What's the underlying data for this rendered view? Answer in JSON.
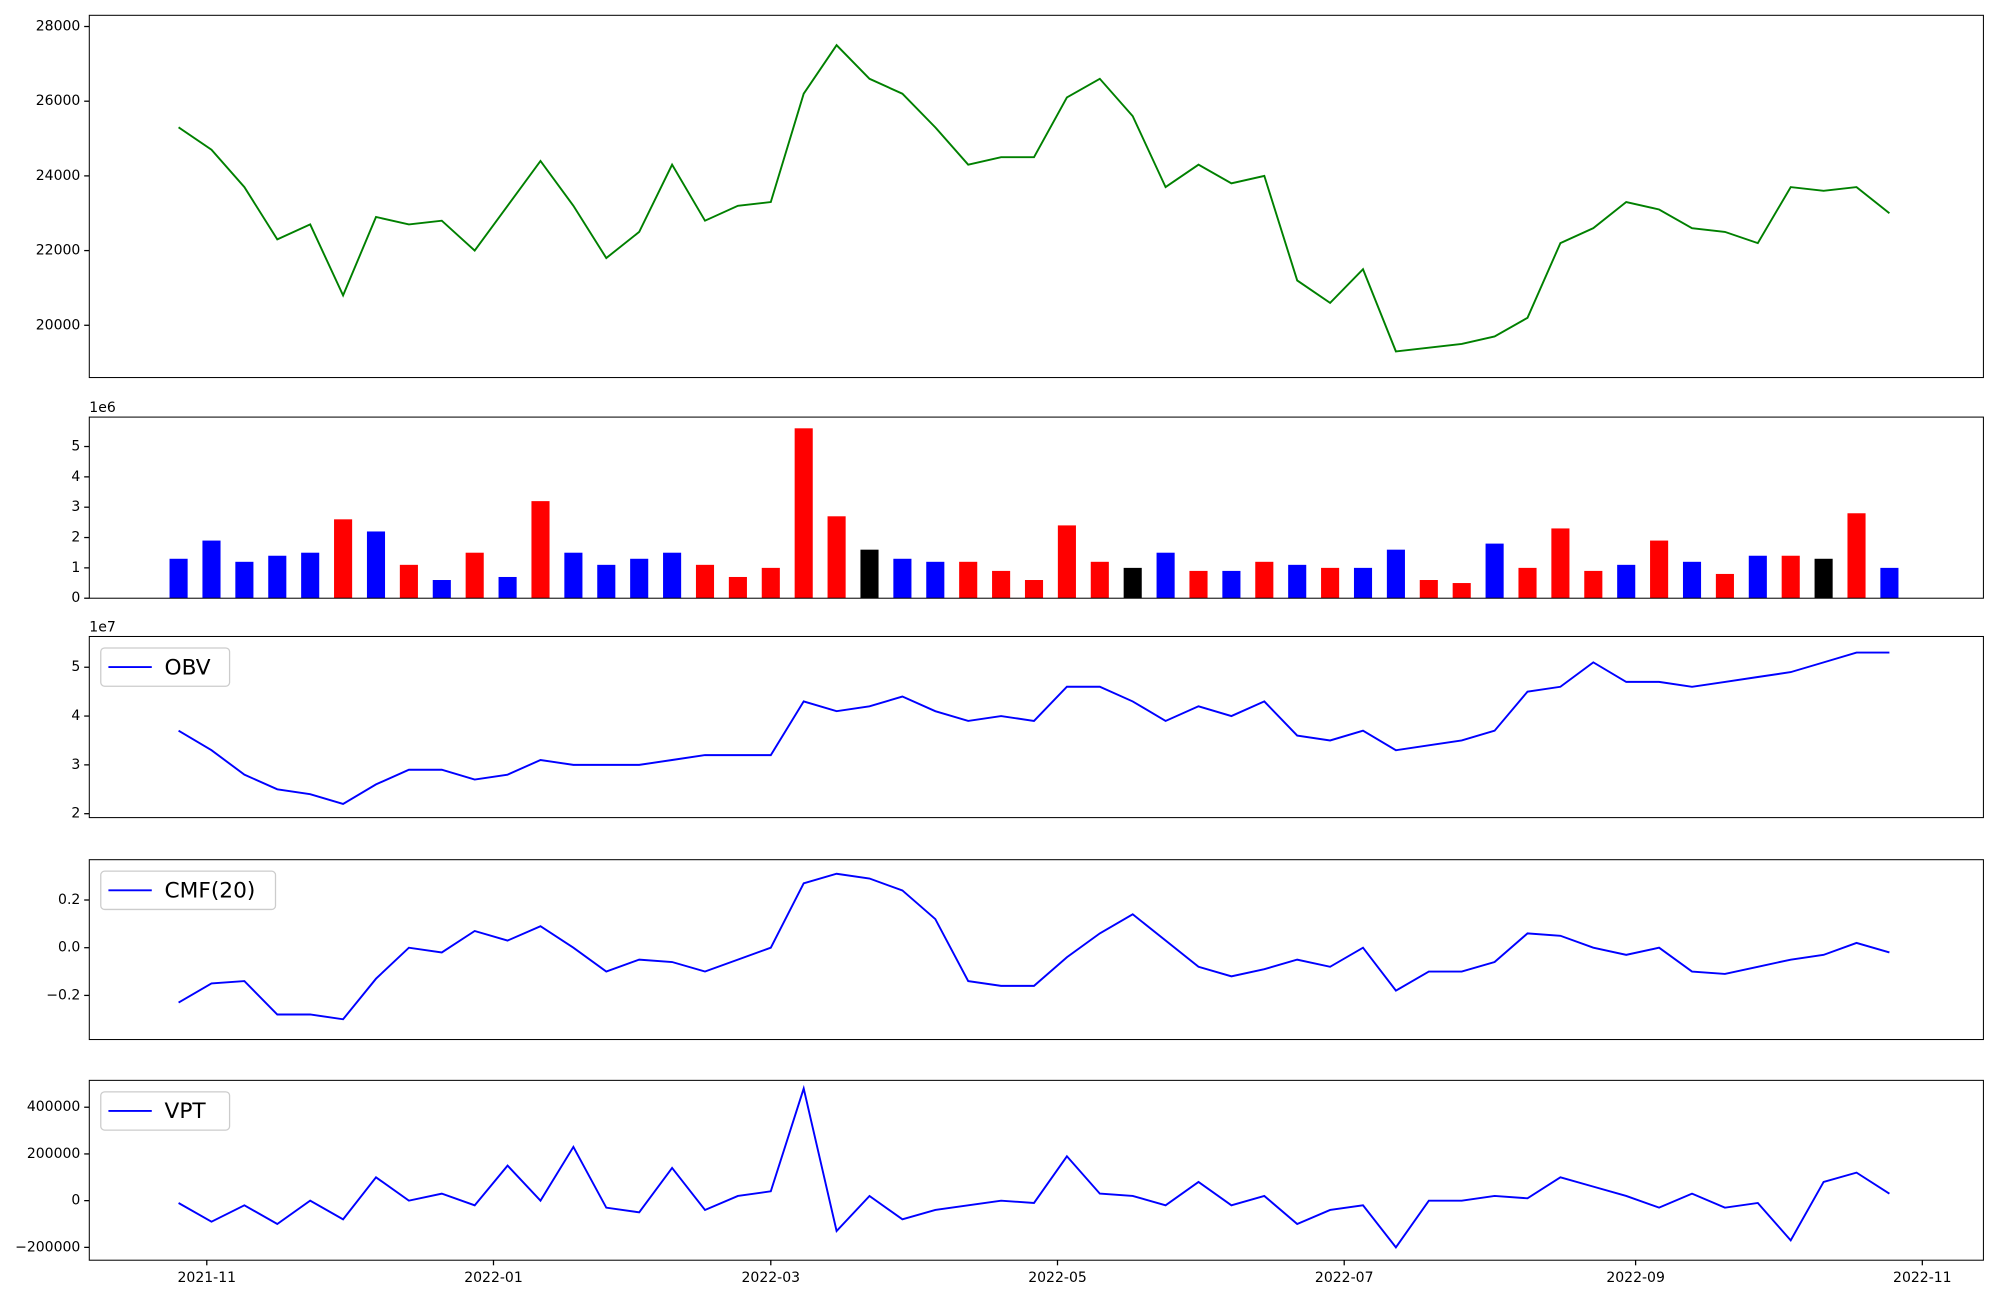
{
  "chart_data": [
    {
      "type": "line",
      "color": "#008000",
      "x": [
        -6,
        1,
        8,
        15,
        22,
        29,
        36,
        43,
        50,
        57,
        64,
        71,
        78,
        85,
        92,
        99,
        106,
        113,
        120,
        127,
        134,
        141,
        148,
        155,
        162,
        169,
        176,
        183,
        190,
        197,
        204,
        211,
        218,
        225,
        232,
        239,
        246,
        253,
        260,
        267,
        274,
        281,
        288,
        295,
        302,
        309,
        316,
        323,
        330,
        337,
        344,
        351,
        358
      ],
      "values": [
        25300,
        24700,
        23700,
        22300,
        22700,
        20800,
        22900,
        22700,
        22800,
        22000,
        23200,
        24400,
        23200,
        21800,
        22500,
        24300,
        22800,
        23200,
        23300,
        26200,
        27500,
        26600,
        26200,
        25300,
        24300,
        24500,
        24500,
        26100,
        26600,
        25600,
        23700,
        24300,
        23800,
        24000,
        21200,
        20600,
        21500,
        19300,
        19400,
        19500,
        19700,
        20200,
        22200,
        22600,
        23300,
        23100,
        22600,
        22500,
        22200,
        23700,
        23600,
        23700,
        23000
      ],
      "xlim": [
        -25,
        378
      ],
      "ylim": [
        18600,
        28300
      ],
      "yticks": [
        20000,
        22000,
        24000,
        26000,
        28000
      ]
    },
    {
      "type": "bar",
      "offset_text": "1e6",
      "x": [
        -6,
        1,
        8,
        15,
        22,
        29,
        36,
        43,
        50,
        57,
        64,
        71,
        78,
        85,
        92,
        99,
        106,
        113,
        120,
        127,
        134,
        141,
        148,
        155,
        162,
        169,
        176,
        183,
        190,
        197,
        204,
        211,
        218,
        225,
        232,
        239,
        246,
        253,
        260,
        267,
        274,
        281,
        288,
        295,
        302,
        309,
        316,
        323,
        330,
        337,
        344,
        351,
        358
      ],
      "values": [
        1.3,
        1.9,
        1.2,
        1.4,
        1.5,
        2.6,
        2.2,
        1.1,
        0.6,
        1.5,
        0.7,
        3.2,
        1.5,
        1.1,
        1.3,
        1.5,
        1.1,
        0.7,
        1.0,
        5.6,
        2.7,
        1.6,
        1.3,
        1.2,
        1.2,
        0.9,
        0.6,
        2.4,
        1.2,
        1.0,
        1.5,
        0.9,
        0.9,
        1.2,
        1.1,
        1.0,
        1.0,
        1.6,
        0.6,
        0.5,
        1.8,
        1.0,
        2.3,
        0.9,
        1.1,
        1.9,
        1.2,
        0.8,
        1.4,
        1.4,
        1.3,
        2.8,
        1.0
      ],
      "colors": [
        "#0000ff",
        "#0000ff",
        "#0000ff",
        "#0000ff",
        "#0000ff",
        "#ff0000",
        "#0000ff",
        "#ff0000",
        "#0000ff",
        "#ff0000",
        "#0000ff",
        "#ff0000",
        "#0000ff",
        "#0000ff",
        "#0000ff",
        "#0000ff",
        "#ff0000",
        "#ff0000",
        "#ff0000",
        "#ff0000",
        "#ff0000",
        "#000000",
        "#0000ff",
        "#0000ff",
        "#ff0000",
        "#ff0000",
        "#ff0000",
        "#ff0000",
        "#ff0000",
        "#000000",
        "#0000ff",
        "#ff0000",
        "#0000ff",
        "#ff0000",
        "#0000ff",
        "#ff0000",
        "#0000ff",
        "#0000ff",
        "#ff0000",
        "#ff0000",
        "#0000ff",
        "#ff0000",
        "#ff0000",
        "#ff0000",
        "#0000ff",
        "#ff0000",
        "#0000ff",
        "#ff0000",
        "#0000ff",
        "#ff0000",
        "#000000",
        "#ff0000",
        "#0000ff"
      ],
      "xlim": [
        -25,
        378
      ],
      "ylim": [
        0,
        5.97
      ],
      "yticks": [
        0,
        1,
        2,
        3,
        4,
        5
      ]
    },
    {
      "type": "line",
      "offset_text": "1e7",
      "legend": "upper left",
      "x": [
        -6,
        1,
        8,
        15,
        22,
        29,
        36,
        43,
        50,
        57,
        64,
        71,
        78,
        85,
        92,
        99,
        106,
        113,
        120,
        127,
        134,
        141,
        148,
        155,
        162,
        169,
        176,
        183,
        190,
        197,
        204,
        211,
        218,
        225,
        232,
        239,
        246,
        253,
        260,
        267,
        274,
        281,
        288,
        295,
        302,
        309,
        316,
        323,
        330,
        337,
        344,
        351,
        358
      ],
      "series": [
        {
          "name": "OBV",
          "color": "#0000ff",
          "values": [
            3.7,
            3.3,
            2.8,
            2.5,
            2.4,
            2.2,
            2.6,
            2.9,
            2.9,
            2.7,
            2.8,
            3.1,
            3.0,
            3.0,
            3.0,
            3.1,
            3.2,
            3.2,
            3.2,
            4.3,
            4.1,
            4.2,
            4.4,
            4.1,
            3.9,
            4.0,
            3.9,
            4.6,
            4.6,
            4.3,
            3.9,
            4.2,
            4.0,
            4.3,
            3.6,
            3.5,
            3.7,
            3.3,
            3.4,
            3.5,
            3.7,
            4.5,
            4.6,
            5.1,
            4.7,
            4.7,
            4.6,
            4.7,
            4.8,
            4.9,
            5.1,
            5.3,
            5.3
          ]
        }
      ],
      "xlim": [
        -25,
        378
      ],
      "ylim": [
        1.92,
        5.63
      ],
      "yticks": [
        2,
        3,
        4,
        5
      ]
    },
    {
      "type": "line",
      "legend": "upper left",
      "x": [
        -6,
        1,
        8,
        15,
        22,
        29,
        36,
        43,
        50,
        57,
        64,
        71,
        78,
        85,
        92,
        99,
        106,
        113,
        120,
        127,
        134,
        141,
        148,
        155,
        162,
        169,
        176,
        183,
        190,
        197,
        204,
        211,
        218,
        225,
        232,
        239,
        246,
        253,
        260,
        267,
        274,
        281,
        288,
        295,
        302,
        309,
        316,
        323,
        330,
        337,
        344,
        351,
        358
      ],
      "series": [
        {
          "name": "CMF(20)",
          "color": "#0000ff",
          "values": [
            -0.23,
            -0.15,
            -0.14,
            -0.28,
            -0.28,
            -0.3,
            -0.13,
            0.0,
            -0.02,
            0.07,
            0.03,
            0.09,
            0.0,
            -0.1,
            -0.05,
            -0.06,
            -0.1,
            -0.05,
            0.0,
            0.27,
            0.31,
            0.29,
            0.24,
            0.12,
            -0.14,
            -0.16,
            -0.16,
            -0.04,
            0.06,
            0.14,
            0.03,
            -0.08,
            -0.12,
            -0.09,
            -0.05,
            -0.08,
            0.0,
            -0.18,
            -0.1,
            -0.1,
            -0.06,
            0.06,
            0.05,
            0.0,
            -0.03,
            0.0,
            -0.1,
            -0.11,
            -0.08,
            -0.05,
            -0.03,
            0.02,
            -0.02
          ]
        }
      ],
      "xlim": [
        -25,
        378
      ],
      "ylim": [
        -0.385,
        0.369
      ],
      "yticks": [
        {
          "value": -0.2,
          "label": "−0.2"
        },
        {
          "value": 0,
          "label": "0.0"
        },
        0.2
      ]
    },
    {
      "type": "line",
      "legend": "upper left",
      "x": [
        -6,
        1,
        8,
        15,
        22,
        29,
        36,
        43,
        50,
        57,
        64,
        71,
        78,
        85,
        92,
        99,
        106,
        113,
        120,
        127,
        134,
        141,
        148,
        155,
        162,
        169,
        176,
        183,
        190,
        197,
        204,
        211,
        218,
        225,
        232,
        239,
        246,
        253,
        260,
        267,
        274,
        281,
        288,
        295,
        302,
        309,
        316,
        323,
        330,
        337,
        344,
        351,
        358
      ],
      "series": [
        {
          "name": "VPT",
          "color": "#0000ff",
          "values": [
            -10000,
            -90000,
            -20000,
            -100000,
            0,
            -80000,
            100000,
            0,
            30000,
            -20000,
            150000,
            0,
            230000,
            -30000,
            -50000,
            140000,
            -40000,
            20000,
            40000,
            480000,
            -130000,
            20000,
            -80000,
            -40000,
            -20000,
            0,
            -10000,
            190000,
            30000,
            20000,
            -20000,
            80000,
            -20000,
            20000,
            -100000,
            -40000,
            -20000,
            -200000,
            0,
            0,
            20000,
            10000,
            100000,
            60000,
            20000,
            -30000,
            30000,
            -30000,
            -10000,
            -170000,
            80000,
            120000,
            30000
          ]
        }
      ],
      "xlim": [
        -25,
        378
      ],
      "ylim": [
        -255000,
        515000
      ],
      "yticks": [
        {
          "value": -200000,
          "label": "−200000"
        },
        0,
        200000,
        400000
      ],
      "xticks": [
        {
          "value": 0,
          "label": "2021-11"
        },
        {
          "value": 61,
          "label": "2022-01"
        },
        {
          "value": 120,
          "label": "2022-03"
        },
        {
          "value": 181,
          "label": "2022-05"
        },
        {
          "value": 242,
          "label": "2022-07"
        },
        {
          "value": 304,
          "label": "2022-09"
        },
        {
          "value": 365,
          "label": "2022-11"
        }
      ]
    }
  ]
}
